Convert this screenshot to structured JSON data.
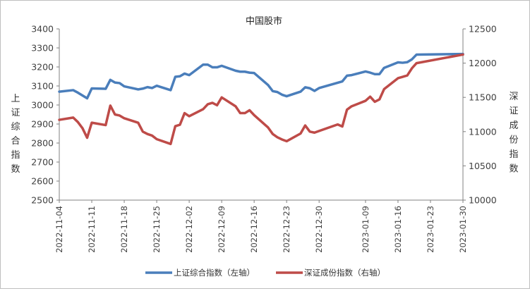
{
  "chart_data": {
    "type": "line",
    "title": "中国股市",
    "y_left": {
      "label": "上证综合指数",
      "range": [
        2500,
        3400
      ],
      "ticks": [
        "2500",
        "2600",
        "2700",
        "2800",
        "2900",
        "3000",
        "3100",
        "3200",
        "3300",
        "3400"
      ]
    },
    "y_right": {
      "label": "深证成份指数",
      "range": [
        10000,
        12500
      ],
      "ticks": [
        "10000",
        "10500",
        "11000",
        "11500",
        "12000",
        "12500"
      ]
    },
    "x": [
      "2022-11-04",
      "2022-11-07",
      "2022-11-08",
      "2022-11-09",
      "2022-11-10",
      "2022-11-11",
      "2022-11-14",
      "2022-11-15",
      "2022-11-16",
      "2022-11-17",
      "2022-11-18",
      "2022-11-21",
      "2022-11-22",
      "2022-11-23",
      "2022-11-24",
      "2022-11-25",
      "2022-11-28",
      "2022-11-29",
      "2022-11-30",
      "2022-12-01",
      "2022-12-02",
      "2022-12-05",
      "2022-12-06",
      "2022-12-07",
      "2022-12-08",
      "2022-12-09",
      "2022-12-12",
      "2022-12-13",
      "2022-12-14",
      "2022-12-15",
      "2022-12-16",
      "2022-12-19",
      "2022-12-20",
      "2022-12-21",
      "2022-12-22",
      "2022-12-23",
      "2022-12-26",
      "2022-12-27",
      "2022-12-28",
      "2022-12-29",
      "2022-12-30",
      "2023-01-03",
      "2023-01-04",
      "2023-01-05",
      "2023-01-06",
      "2023-01-09",
      "2023-01-10",
      "2023-01-11",
      "2023-01-12",
      "2023-01-13",
      "2023-01-16",
      "2023-01-17",
      "2023-01-18",
      "2023-01-19",
      "2023-01-20",
      "2023-01-30"
    ],
    "x_tick_labels": [
      "2022-11-04",
      "2022-11-11",
      "2022-11-18",
      "2022-11-25",
      "2022-12-02",
      "2022-12-09",
      "2022-12-16",
      "2022-12-23",
      "2022-12-30",
      "2023-01-09",
      "2023-01-16",
      "2023-01-23",
      "2023-01-30"
    ],
    "series": [
      {
        "name": "上证综合指数（左轴）",
        "axis": "left",
        "color": "#4a7ebb",
        "values": [
          3070,
          3078,
          3065,
          3050,
          3035,
          3087,
          3085,
          3132,
          3118,
          3115,
          3098,
          3082,
          3086,
          3094,
          3089,
          3101,
          3078,
          3148,
          3151,
          3165,
          3157,
          3212,
          3212,
          3198,
          3198,
          3206,
          3180,
          3175,
          3175,
          3170,
          3168,
          3105,
          3073,
          3068,
          3054,
          3046,
          3070,
          3093,
          3088,
          3074,
          3089,
          3117,
          3124,
          3154,
          3157,
          3176,
          3170,
          3162,
          3162,
          3195,
          3224,
          3222,
          3225,
          3240,
          3265,
          3268
        ]
      },
      {
        "name": "深证成份指数（右轴）",
        "axis": "right",
        "color": "#be4b48",
        "values": [
          11172,
          11205,
          11140,
          11050,
          10910,
          11130,
          11095,
          11380,
          11250,
          11235,
          11195,
          11130,
          11000,
          10965,
          10942,
          10890,
          10820,
          11080,
          11100,
          11270,
          11225,
          11328,
          11400,
          11420,
          11385,
          11500,
          11370,
          11270,
          11270,
          11312,
          11240,
          11060,
          10965,
          10918,
          10885,
          10860,
          10972,
          11090,
          11000,
          10985,
          11010,
          11105,
          11075,
          11320,
          11370,
          11450,
          11510,
          11436,
          11470,
          11620,
          11780,
          11800,
          11820,
          11925,
          12000,
          12125
        ]
      }
    ],
    "grid": false,
    "legend": "bottom-center"
  }
}
